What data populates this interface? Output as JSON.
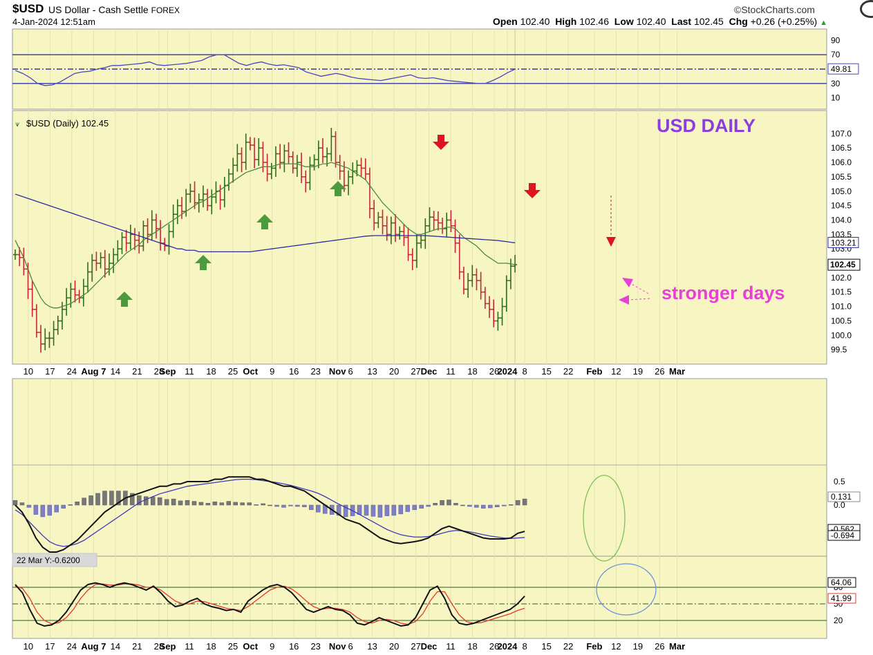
{
  "header": {
    "ticker": "$USD",
    "name": "US Dollar - Cash Settle",
    "exchange": "FOREX",
    "datetime": "4-Jan-2024 12:51am",
    "brand": "©StockCharts.com",
    "open_label": "Open",
    "open": "102.40",
    "high_label": "High",
    "high": "102.46",
    "low_label": "Low",
    "low": "102.40",
    "last_label": "Last",
    "last": "102.45",
    "chg_label": "Chg",
    "chg": "+0.26 (+0.25%)"
  },
  "chart_data": [
    {
      "type": "line",
      "panel": "rsi",
      "ylim": [
        0,
        100
      ],
      "ticks": [
        90,
        70,
        50,
        30,
        10
      ],
      "levels": [
        70,
        50,
        30
      ],
      "last_value_label": "49.81",
      "values": [
        48,
        44,
        38,
        30,
        27,
        28,
        32,
        38,
        44,
        46,
        47,
        50,
        52,
        55,
        55,
        56,
        57,
        58,
        60,
        56,
        55,
        56,
        57,
        58,
        60,
        62,
        67,
        70,
        70,
        64,
        58,
        55,
        58,
        60,
        57,
        55,
        56,
        54,
        52,
        46,
        43,
        40,
        42,
        44,
        42,
        39,
        37,
        36,
        35,
        34,
        36,
        38,
        40,
        42,
        38,
        37,
        38,
        36,
        34,
        33,
        32,
        31,
        30,
        30,
        34,
        39,
        45,
        49.81
      ]
    },
    {
      "type": "ohlc",
      "panel": "price",
      "legend": "$USD (Daily) 102.45",
      "annotation_title": "USD DAILY",
      "annotation_text": "stronger days",
      "ylim": [
        99,
        107.8
      ],
      "ticks": [
        "107.0",
        "106.5",
        "106.0",
        "105.5",
        "105.0",
        "104.5",
        "104.0",
        "103.5",
        "103.0",
        "102.5",
        "102.0",
        "101.5",
        "101.0",
        "100.5",
        "100.0",
        "99.5"
      ],
      "ma_last_label": "103.21",
      "last_label": "102.45",
      "x_labels": [
        {
          "i": 3,
          "t": "10"
        },
        {
          "i": 8,
          "t": "17"
        },
        {
          "i": 13,
          "t": "24"
        },
        {
          "i": 18,
          "t": "Aug 7",
          "bold": true
        },
        {
          "i": 23,
          "t": "14"
        },
        {
          "i": 28,
          "t": "21"
        },
        {
          "i": 33,
          "t": "28"
        },
        {
          "i": 35,
          "t": "Sep",
          "bold": true
        },
        {
          "i": 40,
          "t": "11"
        },
        {
          "i": 45,
          "t": "18"
        },
        {
          "i": 50,
          "t": "25"
        },
        {
          "i": 54,
          "t": "Oct",
          "bold": true
        },
        {
          "i": 59,
          "t": "9"
        },
        {
          "i": 64,
          "t": "16"
        },
        {
          "i": 69,
          "t": "23"
        },
        {
          "i": 74,
          "t": "Nov",
          "bold": true
        },
        {
          "i": 77,
          "t": "6"
        },
        {
          "i": 82,
          "t": "13"
        },
        {
          "i": 87,
          "t": "20"
        },
        {
          "i": 92,
          "t": "27"
        },
        {
          "i": 95,
          "t": "Dec",
          "bold": true
        },
        {
          "i": 100,
          "t": "11"
        },
        {
          "i": 105,
          "t": "18"
        },
        {
          "i": 110,
          "t": "26"
        },
        {
          "i": 113,
          "t": "2024",
          "bold": true
        },
        {
          "i": 117,
          "t": "8"
        },
        {
          "i": 122,
          "t": "15"
        },
        {
          "i": 127,
          "t": "22"
        },
        {
          "i": 133,
          "t": "Feb",
          "bold": true
        },
        {
          "i": 138,
          "t": "12"
        },
        {
          "i": 143,
          "t": "19"
        },
        {
          "i": 148,
          "t": "26"
        },
        {
          "i": 152,
          "t": "Mar",
          "bold": true
        }
      ],
      "closes": [
        102.8,
        102.7,
        102.3,
        101.6,
        100.9,
        100.1,
        99.7,
        99.9,
        99.9,
        100.2,
        100.5,
        100.9,
        101.3,
        101.6,
        101.4,
        101.3,
        101.7,
        102.2,
        102.6,
        102.5,
        102.7,
        102.3,
        102.5,
        102.8,
        103.0,
        103.4,
        103.2,
        103.5,
        103.3,
        103.1,
        103.8,
        103.5,
        104.0,
        103.7,
        103.2,
        103.1,
        103.6,
        104.2,
        104.5,
        104.3,
        104.9,
        105.0,
        104.6,
        104.7,
        104.9,
        104.5,
        104.8,
        105.0,
        104.7,
        105.2,
        105.6,
        105.9,
        106.3,
        106.0,
        106.7,
        106.6,
        106.1,
        106.5,
        106.0,
        105.6,
        105.8,
        106.3,
        106.0,
        106.4,
        106.2,
        105.8,
        106.0,
        105.5,
        105.3,
        105.9,
        106.1,
        106.5,
        106.2,
        106.3,
        106.9,
        106.0,
        105.7,
        105.2,
        105.5,
        105.7,
        105.9,
        105.8,
        105.6,
        104.4,
        103.9,
        104.1,
        103.8,
        103.5,
        103.9,
        103.5,
        103.6,
        103.4,
        102.8,
        102.6,
        103.2,
        103.3,
        103.8,
        104.1,
        104.0,
        103.9,
        103.7,
        104.0,
        103.8,
        103.2,
        102.2,
        101.6,
        101.9,
        102.1,
        101.9,
        101.5,
        101.1,
        100.9,
        100.5,
        100.6,
        101.0,
        101.9,
        102.4,
        102.45
      ],
      "ma_fast": [
        103.3,
        103.0,
        102.7,
        102.3,
        101.9,
        101.6,
        101.3,
        101.1,
        101.0,
        100.95,
        100.95,
        101.0,
        101.05,
        101.1,
        101.2,
        101.3,
        101.4,
        101.5,
        101.65,
        101.8,
        101.95,
        102.1,
        102.25,
        102.4,
        102.55,
        102.7,
        102.85,
        102.95,
        103.05,
        103.15,
        103.3,
        103.4,
        103.5,
        103.6,
        103.7,
        103.8,
        103.9,
        104.0,
        104.1,
        104.2,
        104.3,
        104.4,
        104.5,
        104.6,
        104.65,
        104.75,
        104.85,
        104.95,
        105.05,
        105.15,
        105.25,
        105.35,
        105.45,
        105.55,
        105.65,
        105.7,
        105.75,
        105.8,
        105.85,
        105.85,
        105.85,
        105.9,
        105.95,
        105.95,
        105.95,
        105.95,
        105.95,
        105.9,
        105.85,
        105.85,
        105.85,
        105.9,
        105.95,
        105.95,
        106.0,
        105.95,
        105.9,
        105.85,
        105.8,
        105.7,
        105.6,
        105.5,
        105.4,
        105.2,
        105.0,
        104.8,
        104.6,
        104.45,
        104.3,
        104.15,
        104.0,
        103.85,
        103.7,
        103.6,
        103.5,
        103.5,
        103.55,
        103.6,
        103.65,
        103.7,
        103.7,
        103.75,
        103.75,
        103.7,
        103.55,
        103.4,
        103.3,
        103.2,
        103.1,
        102.95,
        102.8,
        102.7,
        102.6,
        102.5,
        102.5,
        102.5,
        102.48,
        102.45
      ],
      "ma_slow": [
        104.9,
        104.85,
        104.8,
        104.75,
        104.7,
        104.65,
        104.6,
        104.55,
        104.5,
        104.45,
        104.4,
        104.35,
        104.3,
        104.25,
        104.2,
        104.15,
        104.1,
        104.05,
        104.0,
        103.95,
        103.9,
        103.85,
        103.8,
        103.75,
        103.7,
        103.65,
        103.6,
        103.55,
        103.5,
        103.45,
        103.4,
        103.35,
        103.3,
        103.25,
        103.2,
        103.15,
        103.1,
        103.05,
        103.0,
        103.0,
        102.95,
        102.95,
        102.95,
        102.9,
        102.9,
        102.9,
        102.9,
        102.9,
        102.9,
        102.9,
        102.9,
        102.9,
        102.9,
        102.9,
        102.9,
        102.9,
        102.92,
        102.94,
        102.96,
        102.98,
        103.0,
        103.02,
        103.04,
        103.06,
        103.08,
        103.1,
        103.12,
        103.14,
        103.16,
        103.18,
        103.2,
        103.22,
        103.24,
        103.26,
        103.28,
        103.3,
        103.32,
        103.34,
        103.36,
        103.38,
        103.4,
        103.42,
        103.44,
        103.45,
        103.46,
        103.46,
        103.46,
        103.46,
        103.46,
        103.46,
        103.46,
        103.46,
        103.46,
        103.46,
        103.46,
        103.46,
        103.46,
        103.45,
        103.44,
        103.43,
        103.42,
        103.41,
        103.4,
        103.39,
        103.38,
        103.37,
        103.36,
        103.35,
        103.34,
        103.33,
        103.32,
        103.31,
        103.3,
        103.29,
        103.27,
        103.25,
        103.23,
        103.21
      ]
    },
    {
      "type": "line",
      "panel": "macd",
      "ticks": [
        "0.5",
        "0.0"
      ],
      "labels": [
        "0.131",
        "-0.562",
        "-0.694"
      ],
      "macd": [
        -0.0,
        -0.15,
        -0.4,
        -0.7,
        -0.9,
        -1.0,
        -1.0,
        -0.95,
        -0.85,
        -0.75,
        -0.6,
        -0.45,
        -0.3,
        -0.15,
        -0.05,
        0.05,
        0.15,
        0.2,
        0.25,
        0.3,
        0.35,
        0.4,
        0.4,
        0.45,
        0.45,
        0.5,
        0.5,
        0.5,
        0.5,
        0.55,
        0.55,
        0.6,
        0.6,
        0.6,
        0.6,
        0.55,
        0.55,
        0.5,
        0.45,
        0.4,
        0.4,
        0.35,
        0.3,
        0.2,
        0.1,
        0.0,
        -0.1,
        -0.2,
        -0.3,
        -0.35,
        -0.4,
        -0.5,
        -0.6,
        -0.7,
        -0.75,
        -0.8,
        -0.82,
        -0.8,
        -0.78,
        -0.75,
        -0.7,
        -0.6,
        -0.5,
        -0.45,
        -0.5,
        -0.55,
        -0.6,
        -0.65,
        -0.7,
        -0.72,
        -0.72,
        -0.72,
        -0.7,
        -0.6,
        -0.56
      ],
      "signal": [
        -0.1,
        -0.2,
        -0.35,
        -0.5,
        -0.65,
        -0.78,
        -0.85,
        -0.88,
        -0.86,
        -0.82,
        -0.75,
        -0.65,
        -0.55,
        -0.45,
        -0.35,
        -0.25,
        -0.15,
        -0.05,
        0.05,
        0.12,
        0.18,
        0.24,
        0.28,
        0.32,
        0.36,
        0.4,
        0.42,
        0.44,
        0.46,
        0.48,
        0.5,
        0.52,
        0.54,
        0.55,
        0.55,
        0.54,
        0.52,
        0.5,
        0.48,
        0.45,
        0.42,
        0.38,
        0.34,
        0.3,
        0.25,
        0.18,
        0.1,
        0.02,
        -0.05,
        -0.12,
        -0.2,
        -0.28,
        -0.36,
        -0.44,
        -0.52,
        -0.58,
        -0.63,
        -0.66,
        -0.68,
        -0.68,
        -0.67,
        -0.64,
        -0.6,
        -0.56,
        -0.54,
        -0.55,
        -0.57,
        -0.6,
        -0.63,
        -0.66,
        -0.68,
        -0.7,
        -0.71,
        -0.7,
        -0.69
      ],
      "histogram": [
        0.1,
        0.05,
        -0.05,
        -0.2,
        -0.25,
        -0.22,
        -0.15,
        -0.07,
        0.01,
        0.07,
        0.15,
        0.2,
        0.25,
        0.3,
        0.3,
        0.3,
        0.3,
        0.25,
        0.2,
        0.18,
        0.17,
        0.16,
        0.12,
        0.13,
        0.09,
        0.1,
        0.08,
        0.06,
        0.04,
        0.07,
        0.05,
        0.08,
        0.06,
        0.05,
        0.05,
        0.01,
        0.03,
        0.0,
        -0.03,
        -0.05,
        -0.02,
        -0.03,
        -0.04,
        -0.1,
        -0.15,
        -0.18,
        -0.2,
        -0.22,
        -0.25,
        -0.23,
        -0.2,
        -0.22,
        -0.24,
        -0.26,
        -0.23,
        -0.22,
        -0.19,
        -0.14,
        -0.1,
        -0.07,
        -0.03,
        0.04,
        0.1,
        0.11,
        0.04,
        0.0,
        -0.03,
        -0.05,
        -0.07,
        -0.06,
        -0.04,
        -0.02,
        0.01,
        0.1,
        0.131
      ]
    },
    {
      "type": "line",
      "panel": "stochastic",
      "tooltip": "22 Mar Y:-0.6200",
      "ylim": [
        0,
        100
      ],
      "ticks": [
        80,
        50,
        20
      ],
      "levels": [
        80,
        50,
        20
      ],
      "labels": [
        "64.06",
        "41.99"
      ],
      "k": [
        85,
        70,
        40,
        15,
        10,
        12,
        20,
        35,
        55,
        75,
        85,
        88,
        85,
        80,
        85,
        88,
        85,
        80,
        75,
        82,
        70,
        55,
        45,
        48,
        55,
        60,
        50,
        45,
        42,
        38,
        40,
        35,
        55,
        65,
        75,
        82,
        85,
        80,
        70,
        55,
        40,
        35,
        40,
        45,
        40,
        38,
        30,
        15,
        12,
        18,
        25,
        20,
        15,
        10,
        12,
        25,
        50,
        75,
        82,
        60,
        30,
        15,
        12,
        15,
        20,
        25,
        30,
        35,
        40,
        50,
        64.06
      ],
      "d": [
        82,
        78,
        60,
        35,
        20,
        14,
        16,
        25,
        40,
        60,
        75,
        85,
        86,
        84,
        84,
        86,
        86,
        84,
        80,
        80,
        75,
        65,
        55,
        50,
        50,
        55,
        54,
        50,
        46,
        42,
        40,
        38,
        45,
        55,
        65,
        75,
        80,
        82,
        77,
        67,
        55,
        45,
        40,
        42,
        42,
        40,
        35,
        25,
        18,
        15,
        20,
        22,
        20,
        15,
        13,
        18,
        32,
        55,
        72,
        72,
        50,
        30,
        18,
        15,
        16,
        20,
        24,
        28,
        32,
        38,
        41.99
      ]
    }
  ]
}
